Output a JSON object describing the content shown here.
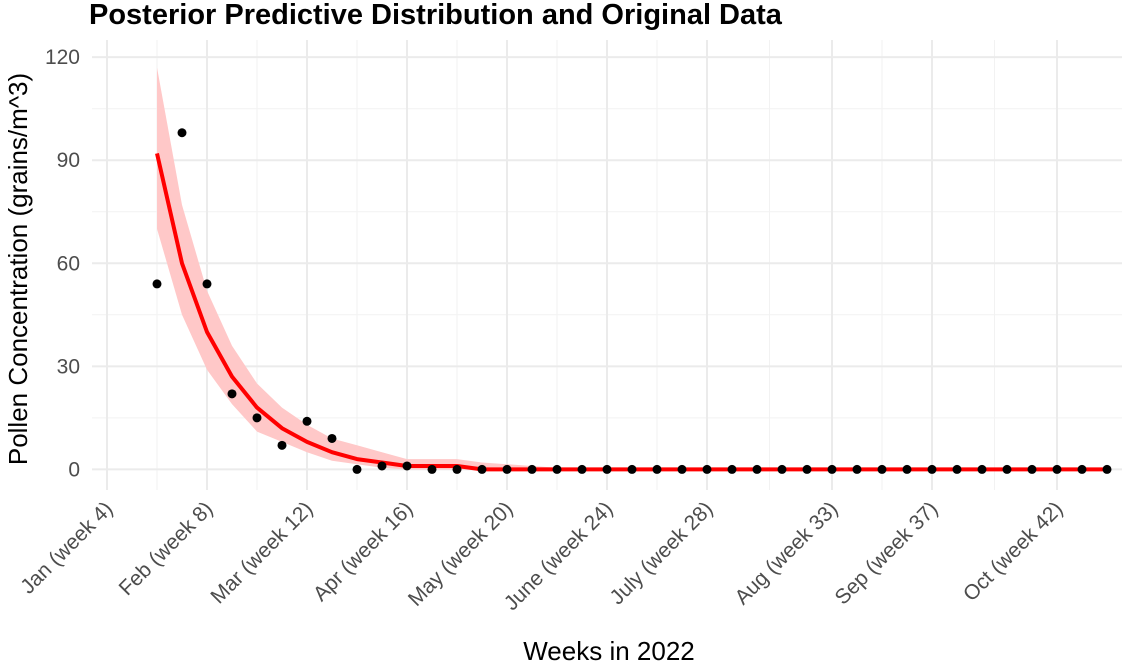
{
  "chart_data": {
    "type": "line",
    "title": "Posterior Predictive Distribution and Original Data",
    "xlabel": "Weeks in 2022",
    "ylabel": "Pollen Concentration (grains/m^3)",
    "xlim": [
      3.4,
      44.6
    ],
    "ylim": [
      -6,
      125
    ],
    "x_ticks": [
      {
        "week": 4,
        "label": "Jan (week 4)"
      },
      {
        "week": 8,
        "label": "Feb (week 8)"
      },
      {
        "week": 12,
        "label": "Mar (week 12)"
      },
      {
        "week": 16,
        "label": "Apr (week 16)"
      },
      {
        "week": 20,
        "label": "May (week 20)"
      },
      {
        "week": 24,
        "label": "June (week 24)"
      },
      {
        "week": 28,
        "label": "July (week 28)"
      },
      {
        "week": 33,
        "label": "Aug (week 33)"
      },
      {
        "week": 37,
        "label": "Sep (week 37)"
      },
      {
        "week": 42,
        "label": "Oct (week 42)"
      }
    ],
    "y_ticks": [
      0,
      30,
      60,
      90,
      120
    ],
    "grid": true,
    "line_color": "#ff0000",
    "ribbon_color": "#ffc8c8",
    "point_color": "#000000",
    "series": [
      {
        "type": "line",
        "x": [
          6,
          7,
          8,
          9,
          10,
          11,
          12,
          13,
          14,
          15,
          16,
          17,
          18,
          19,
          20,
          21,
          22,
          23,
          24,
          25,
          26,
          27,
          28,
          29,
          30,
          31,
          32,
          33,
          34,
          35,
          36,
          37,
          38,
          39,
          40,
          41,
          42,
          43,
          44
        ],
        "y": [
          92,
          60,
          40,
          27,
          18,
          12,
          8,
          5,
          3,
          2,
          1,
          1,
          1,
          0,
          0,
          0,
          0,
          0,
          0,
          0,
          0,
          0,
          0,
          0,
          0,
          0,
          0,
          0,
          0,
          0,
          0,
          0,
          0,
          0,
          0,
          0,
          0,
          0,
          0
        ]
      },
      {
        "type": "ribbon",
        "x": [
          6,
          7,
          8,
          9,
          10,
          11,
          12,
          13,
          14,
          15,
          16,
          17,
          18,
          19,
          20,
          21,
          22,
          23,
          24,
          25,
          26,
          27,
          28,
          29,
          30,
          31,
          32,
          33,
          34,
          35,
          36,
          37,
          38,
          39,
          40,
          41,
          42,
          43,
          44
        ],
        "lower": [
          70,
          45,
          29,
          19,
          11,
          8,
          5,
          2.5,
          1.5,
          0.5,
          0,
          0,
          0,
          0,
          0,
          0,
          0,
          0,
          0,
          0,
          0,
          0,
          0,
          0,
          0,
          0,
          0,
          0,
          0,
          0,
          0,
          0,
          0,
          0,
          0,
          0,
          0,
          0,
          0
        ],
        "upper": [
          117,
          77,
          52,
          36,
          25,
          18,
          13,
          9,
          7,
          5,
          3,
          3,
          3,
          2,
          1.5,
          1,
          0.5,
          0,
          0,
          0,
          0,
          0,
          0,
          0,
          0,
          0,
          0,
          0,
          0,
          0,
          0,
          0,
          0,
          0,
          0,
          0,
          0,
          0,
          0
        ]
      },
      {
        "type": "scatter",
        "x": [
          6,
          7,
          8,
          9,
          10,
          11,
          12,
          13,
          14,
          15,
          16,
          17,
          18,
          19,
          20,
          21,
          22,
          23,
          24,
          25,
          26,
          27,
          28,
          29,
          30,
          31,
          32,
          33,
          34,
          35,
          36,
          37,
          38,
          39,
          40,
          41,
          42,
          43,
          44
        ],
        "y": [
          54,
          98,
          54,
          22,
          15,
          7,
          14,
          9,
          0,
          1,
          1,
          0,
          0,
          0,
          0,
          0,
          0,
          0,
          0,
          0,
          0,
          0,
          0,
          0,
          0,
          0,
          0,
          0,
          0,
          0,
          0,
          0,
          0,
          0,
          0,
          0,
          0,
          0,
          0
        ]
      }
    ]
  }
}
